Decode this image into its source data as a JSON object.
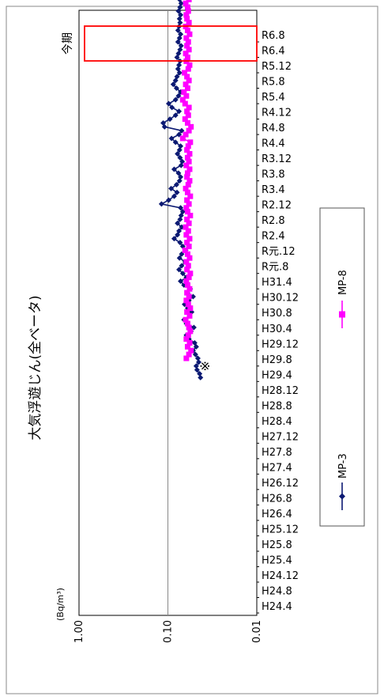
{
  "chart_data": {
    "type": "line",
    "title": "大気浮遊じん(全ベータ)",
    "unit_label": "(Bq/m³)",
    "y_scale": "log",
    "ylim": [
      0.01,
      1.0
    ],
    "y_ticks": [
      "1.00",
      "0.10",
      "0.01"
    ],
    "grid": true,
    "legend_placement": "bottom",
    "x_tick_labels": [
      "H24.4",
      "H24.8",
      "H24.12",
      "H25.4",
      "H25.8",
      "H25.12",
      "H26.4",
      "H26.8",
      "H26.12",
      "H27.4",
      "H27.8",
      "H27.12",
      "H28.4",
      "H28.8",
      "H28.12",
      "H29.4",
      "H29.8",
      "H29.12",
      "H30.4",
      "H30.8",
      "H30.12",
      "H31.4",
      "R元.8",
      "R元.12",
      "R2.4",
      "R2.8",
      "R2.12",
      "R3.4",
      "R3.8",
      "R3.12",
      "R4.4",
      "R4.8",
      "R4.12",
      "R5.4",
      "R5.8",
      "R5.12",
      "R6.4",
      "R6.8"
    ],
    "x_start": "H24.4",
    "current_period_label": "今期",
    "annotation": "※",
    "series": [
      {
        "name": "MP-3",
        "color": "#0c1a73",
        "marker": "diamond",
        "start_month_index": 61,
        "values": [
          0.043,
          0.044,
          0.047,
          0.048,
          0.045,
          0.046,
          0.049,
          0.052,
          0.048,
          0.05,
          0.058,
          0.062,
          0.055,
          0.051,
          0.062,
          0.066,
          0.057,
          0.054,
          0.06,
          0.065,
          0.058,
          0.052,
          0.06,
          0.056,
          0.066,
          0.072,
          0.062,
          0.068,
          0.075,
          0.07,
          0.064,
          0.074,
          0.07,
          0.063,
          0.068,
          0.073,
          0.085,
          0.078,
          0.075,
          0.07,
          0.078,
          0.073,
          0.071,
          0.068,
          0.072,
          0.118,
          0.098,
          0.085,
          0.079,
          0.092,
          0.08,
          0.074,
          0.072,
          0.076,
          0.085,
          0.071,
          0.069,
          0.073,
          0.078,
          0.074,
          0.072,
          0.082,
          0.091,
          0.075,
          0.07,
          0.109,
          0.113,
          0.095,
          0.082,
          0.075,
          0.09,
          0.098,
          0.082,
          0.076,
          0.072,
          0.08,
          0.087,
          0.082,
          0.079,
          0.074,
          0.077,
          0.075,
          0.073,
          0.079,
          0.076,
          0.073,
          0.071,
          0.077,
          0.074,
          0.072,
          0.077,
          0.075,
          0.073,
          0.074,
          0.072,
          0.076,
          0.073,
          0.071,
          0.074,
          0.072,
          0.07,
          0.073,
          0.071,
          0.069,
          0.072,
          0.07,
          0.071,
          0.069,
          0.07,
          0.072,
          0.071,
          0.07,
          0.072,
          0.073,
          0.071,
          0.07,
          0.072,
          0.071,
          0.069,
          0.071,
          0.07,
          0.072,
          0.071,
          0.07,
          0.071,
          0.07,
          0.071,
          0.07
        ]
      },
      {
        "name": "MP-8",
        "color": "#ff00ff",
        "marker": "square",
        "start_month_index": 66,
        "values": [
          0.062,
          0.058,
          0.055,
          0.06,
          0.057,
          0.062,
          0.059,
          0.056,
          0.058,
          0.06,
          0.063,
          0.057,
          0.061,
          0.056,
          0.059,
          0.062,
          0.058,
          0.061,
          0.057,
          0.06,
          0.062,
          0.058,
          0.056,
          0.061,
          0.059,
          0.062,
          0.057,
          0.06,
          0.064,
          0.058,
          0.061,
          0.057,
          0.062,
          0.059,
          0.063,
          0.058,
          0.061,
          0.056,
          0.06,
          0.062,
          0.058,
          0.061,
          0.056,
          0.06,
          0.063,
          0.059,
          0.057,
          0.061,
          0.06,
          0.057,
          0.062,
          0.058,
          0.06,
          0.057,
          0.061,
          0.059,
          0.056,
          0.068,
          0.063,
          0.058,
          0.055,
          0.06,
          0.064,
          0.059,
          0.061,
          0.058,
          0.064,
          0.068,
          0.062,
          0.066,
          0.06,
          0.063,
          0.058,
          0.061,
          0.065,
          0.059,
          0.057,
          0.062,
          0.06,
          0.063,
          0.058,
          0.061,
          0.059,
          0.062,
          0.057,
          0.06,
          0.063,
          0.058,
          0.061,
          0.062,
          0.059,
          0.06,
          0.063,
          0.058,
          0.061,
          0.06,
          0.058,
          0.062,
          0.059,
          0.061,
          0.06,
          0.062,
          0.058,
          0.061,
          0.063,
          0.059,
          0.06,
          0.062,
          0.058,
          0.061,
          0.06,
          0.062,
          0.059,
          0.061,
          0.06,
          0.058,
          0.061,
          0.062,
          0.06,
          0.059,
          0.06,
          0.061,
          0.062,
          0.058,
          0.06,
          0.061,
          0.06,
          0.059,
          0.062,
          0.058,
          0.06,
          0.061,
          0.06,
          0.058,
          0.061,
          0.062,
          0.06,
          0.059,
          0.061,
          0.06,
          0.062,
          0.058,
          0.06,
          0.061,
          0.06,
          0.059,
          0.061,
          0.062
        ]
      }
    ]
  }
}
